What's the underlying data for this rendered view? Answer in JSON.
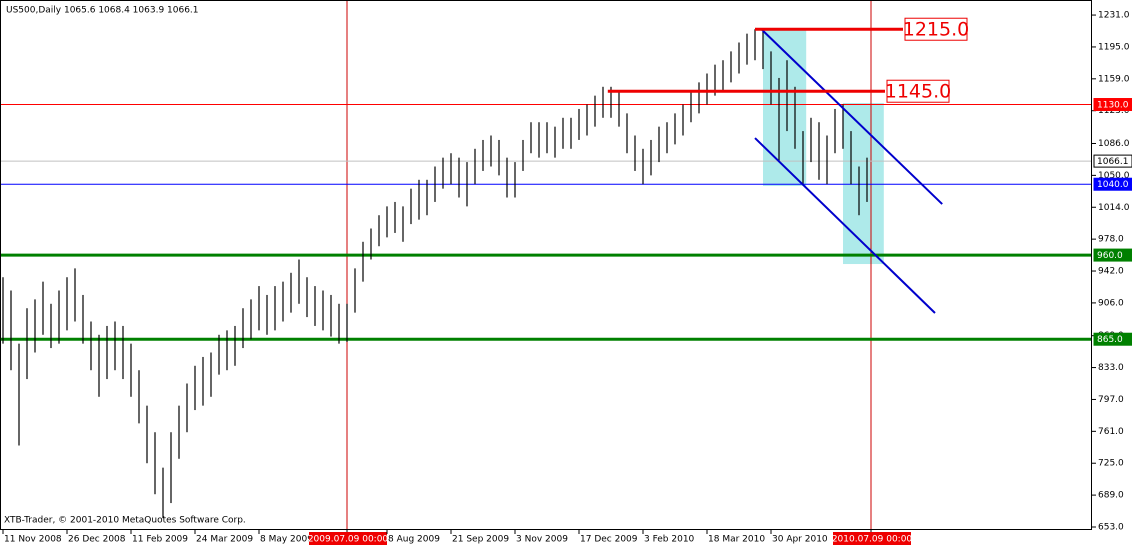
{
  "chart_data": {
    "type": "ohlc",
    "title": "US500,Daily  1065.6 1068.4 1063.9 1066.1",
    "footer": "XTB-Trader, © 2001-2010 MetaQuotes Software Corp.",
    "series": [
      {
        "color": "#000000",
        "high": [
          935,
          920,
          860,
          900,
          910,
          930,
          905,
          920,
          935,
          945,
          915,
          885,
          870,
          880,
          885,
          880,
          860,
          830,
          790,
          760,
          720,
          760,
          790,
          815,
          835,
          845,
          850,
          870,
          875,
          880,
          900,
          910,
          925,
          915,
          925,
          930,
          940,
          955,
          935,
          925,
          920,
          915,
          905,
          905,
          945,
          975,
          990,
          1005,
          1015,
          1020,
          1015,
          1035,
          1045,
          1045,
          1060,
          1070,
          1075,
          1070,
          1065,
          1080,
          1090,
          1095,
          1090,
          1070,
          1065,
          1090,
          1110,
          1110,
          1110,
          1105,
          1115,
          1115,
          1125,
          1130,
          1140,
          1150,
          1150,
          1145,
          1120,
          1095,
          1080,
          1090,
          1105,
          1110,
          1120,
          1130,
          1145,
          1155,
          1165,
          1175,
          1180,
          1190,
          1200,
          1210,
          1215,
          1212,
          1190,
          1160,
          1180,
          1150,
          1100,
          1115,
          1110,
          1095,
          1125,
          1130,
          1100,
          1060,
          1070
        ],
        "low": [
          860,
          830,
          745,
          820,
          850,
          870,
          855,
          860,
          875,
          885,
          860,
          830,
          800,
          820,
          830,
          820,
          800,
          770,
          725,
          690,
          663,
          680,
          730,
          760,
          785,
          790,
          800,
          825,
          830,
          835,
          855,
          865,
          875,
          870,
          875,
          885,
          895,
          905,
          890,
          880,
          875,
          868,
          860,
          862,
          895,
          930,
          955,
          970,
          980,
          985,
          975,
          995,
          1000,
          1005,
          1020,
          1035,
          1040,
          1025,
          1015,
          1040,
          1055,
          1060,
          1050,
          1025,
          1025,
          1055,
          1075,
          1070,
          1075,
          1070,
          1080,
          1080,
          1090,
          1095,
          1105,
          1115,
          1115,
          1105,
          1075,
          1055,
          1040,
          1050,
          1065,
          1075,
          1085,
          1095,
          1110,
          1120,
          1130,
          1140,
          1145,
          1155,
          1165,
          1175,
          1180,
          1170,
          1130,
          1065,
          1100,
          1080,
          1040,
          1065,
          1045,
          1040,
          1075,
          1080,
          1040,
          1005,
          1020
        ]
      }
    ],
    "xlim": [
      -0.375,
      136.125
    ],
    "ylim": [
      649.6,
      1248
    ],
    "xticks": [
      {
        "value": 0,
        "label": "11 Nov 2008"
      },
      {
        "value": 8,
        "label": "26 Dec 2008"
      },
      {
        "value": 16,
        "label": "11 Feb 2009"
      },
      {
        "value": 24,
        "label": "24 Mar 2009"
      },
      {
        "value": 32,
        "label": "8 May 2009"
      },
      {
        "value": 43,
        "label": "2009.07.09 00:00",
        "highlight": true
      },
      {
        "value": 48,
        "label": "8 Aug 2009"
      },
      {
        "value": 56,
        "label": "21 Sep 2009"
      },
      {
        "value": 64,
        "label": "3 Nov 2009"
      },
      {
        "value": 72,
        "label": "17 Dec 2009"
      },
      {
        "value": 80,
        "label": "3 Feb 2010"
      },
      {
        "value": 88,
        "label": "18 Mar 2010"
      },
      {
        "value": 96,
        "label": "30 Apr 2010"
      },
      {
        "value": 108.5,
        "label": "2010.07.09 00:00",
        "highlight": true
      }
    ],
    "yticks": [
      {
        "value": 1231,
        "label": "1231.0"
      },
      {
        "value": 1195,
        "label": "1195.0"
      },
      {
        "value": 1159,
        "label": "1159.0"
      },
      {
        "value": 1123,
        "label": "1123.0"
      },
      {
        "value": 1086,
        "label": "1086.0"
      },
      {
        "value": 1050,
        "label": "1050.0"
      },
      {
        "value": 1014,
        "label": "1014.0"
      },
      {
        "value": 978,
        "label": "978.0"
      },
      {
        "value": 942,
        "label": "942.0"
      },
      {
        "value": 906,
        "label": "906.0"
      },
      {
        "value": 869,
        "label": "869.0"
      },
      {
        "value": 833,
        "label": "833.0"
      },
      {
        "value": 797,
        "label": "797.0"
      },
      {
        "value": 761,
        "label": "761.0"
      },
      {
        "value": 725,
        "label": "725.0"
      },
      {
        "value": 689,
        "label": "689.0"
      },
      {
        "value": 653,
        "label": "653.0"
      }
    ],
    "levels": [
      {
        "value": 1130,
        "label": "1130.0",
        "color": "#ff0000",
        "width": 1
      },
      {
        "value": 1066.1,
        "label": "1066.1",
        "color": "#c0c0c0",
        "width": 1
      },
      {
        "value": 1040,
        "label": "1040.0",
        "color": "#0000ff",
        "width": 1
      },
      {
        "value": 960,
        "label": "960.0",
        "color": "#008000",
        "width": 3
      },
      {
        "value": 865,
        "label": "865.0",
        "color": "#008000",
        "width": 3
      }
    ],
    "resistances": [
      {
        "value": 1215,
        "label": "1215.0",
        "from": 94,
        "to": 112.5
      },
      {
        "value": 1145,
        "label": "1145.0",
        "from": 75.6,
        "to": 110.25
      }
    ],
    "channels": [
      {
        "x": [
          94.9,
          117.4
        ],
        "y": [
          1214.1,
          1017.6
        ]
      },
      {
        "x": [
          94,
          116.5
        ],
        "y": [
          1092.1,
          894.6
        ]
      }
    ],
    "boxes": [
      {
        "x": [
          95,
          100.4
        ],
        "y": [
          1214,
          1038
        ]
      },
      {
        "x": [
          105,
          110.1
        ],
        "y": [
          1131.7,
          949.9
        ]
      }
    ]
  }
}
